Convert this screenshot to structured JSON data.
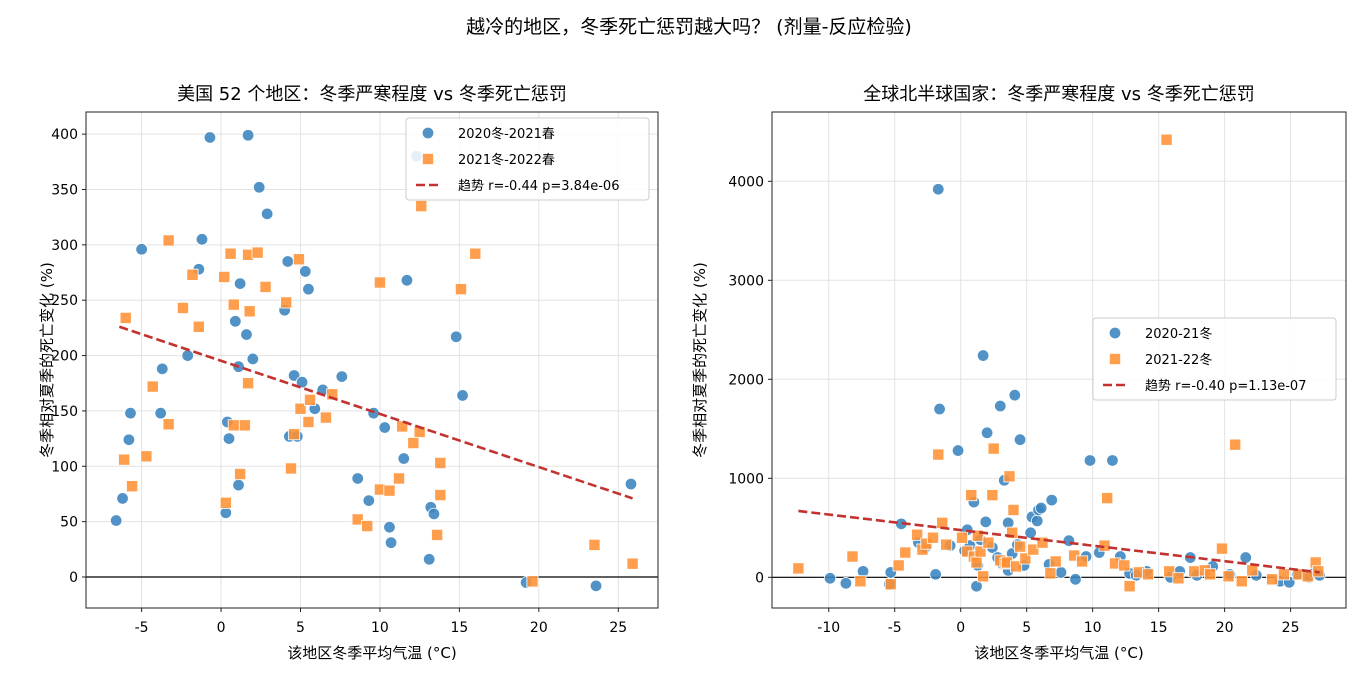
{
  "suptitle": "越冷的地区，冬季死亡惩罚越大吗？ (剂量-反应检验)",
  "chart_data": [
    {
      "type": "scatter",
      "title": "美国 52 个地区：冬季严寒程度 vs 冬季死亡惩罚",
      "xlabel": "该地区冬季平均气温 (°C)",
      "ylabel": "冬季相对夏季的死亡变化 (%)",
      "xlim": [
        -8.5,
        27.5
      ],
      "ylim": [
        -28,
        420
      ],
      "xticks": [
        -5,
        0,
        5,
        10,
        15,
        20,
        25
      ],
      "yticks": [
        0,
        50,
        100,
        150,
        200,
        250,
        300,
        350,
        400
      ],
      "grid": true,
      "zero_line": 0,
      "legend_position": "top-right",
      "series": [
        {
          "name": "2020冬-2021春",
          "marker": "circle",
          "color": "#3a84bf",
          "points": [
            [
              -6.6,
              51
            ],
            [
              -6.2,
              71
            ],
            [
              -5.8,
              124
            ],
            [
              -5.7,
              148
            ],
            [
              -5.0,
              296
            ],
            [
              -3.8,
              148
            ],
            [
              -3.7,
              188
            ],
            [
              -2.1,
              200
            ],
            [
              -1.4,
              278
            ],
            [
              -1.2,
              305
            ],
            [
              -0.7,
              397
            ],
            [
              0.3,
              58
            ],
            [
              0.4,
              140
            ],
            [
              0.5,
              125
            ],
            [
              0.9,
              231
            ],
            [
              1.1,
              83
            ],
            [
              1.1,
              190
            ],
            [
              1.2,
              265
            ],
            [
              1.6,
              219
            ],
            [
              1.7,
              399
            ],
            [
              2.0,
              197
            ],
            [
              2.4,
              352
            ],
            [
              2.9,
              328
            ],
            [
              4.0,
              241
            ],
            [
              4.2,
              285
            ],
            [
              4.3,
              127
            ],
            [
              4.6,
              182
            ],
            [
              4.8,
              127
            ],
            [
              5.1,
              176
            ],
            [
              5.3,
              276
            ],
            [
              5.5,
              260
            ],
            [
              5.9,
              152
            ],
            [
              6.4,
              169
            ],
            [
              7.6,
              181
            ],
            [
              8.6,
              89
            ],
            [
              9.3,
              69
            ],
            [
              9.6,
              148
            ],
            [
              10.3,
              135
            ],
            [
              10.6,
              45
            ],
            [
              10.7,
              31
            ],
            [
              11.5,
              107
            ],
            [
              11.7,
              268
            ],
            [
              12.3,
              380
            ],
            [
              13.1,
              16
            ],
            [
              13.2,
              63
            ],
            [
              13.4,
              57
            ],
            [
              14.8,
              217
            ],
            [
              15.2,
              164
            ],
            [
              19.2,
              -5
            ],
            [
              23.6,
              -8
            ],
            [
              25.8,
              84
            ]
          ]
        },
        {
          "name": "2021冬-2022春",
          "marker": "square",
          "color": "#ff9133",
          "points": [
            [
              -6.0,
              234
            ],
            [
              -6.1,
              106
            ],
            [
              -5.6,
              82
            ],
            [
              -4.7,
              109
            ],
            [
              -4.3,
              172
            ],
            [
              -3.3,
              304
            ],
            [
              -3.3,
              138
            ],
            [
              -2.4,
              243
            ],
            [
              -1.8,
              273
            ],
            [
              -1.4,
              226
            ],
            [
              0.2,
              271
            ],
            [
              0.3,
              67
            ],
            [
              0.6,
              292
            ],
            [
              0.8,
              137
            ],
            [
              0.8,
              246
            ],
            [
              1.2,
              93
            ],
            [
              1.5,
              137
            ],
            [
              1.7,
              291
            ],
            [
              1.7,
              175
            ],
            [
              1.8,
              240
            ],
            [
              2.3,
              293
            ],
            [
              2.8,
              262
            ],
            [
              4.1,
              248
            ],
            [
              4.4,
              98
            ],
            [
              4.6,
              129
            ],
            [
              4.9,
              287
            ],
            [
              5.0,
              152
            ],
            [
              5.5,
              140
            ],
            [
              5.6,
              160
            ],
            [
              6.6,
              144
            ],
            [
              7.0,
              165
            ],
            [
              8.6,
              52
            ],
            [
              9.2,
              46
            ],
            [
              10.0,
              266
            ],
            [
              10.0,
              79
            ],
            [
              10.6,
              78
            ],
            [
              11.2,
              89
            ],
            [
              11.4,
              136
            ],
            [
              12.1,
              121
            ],
            [
              12.5,
              131
            ],
            [
              12.6,
              335
            ],
            [
              13.6,
              38
            ],
            [
              13.8,
              74
            ],
            [
              13.8,
              103
            ],
            [
              15.1,
              260
            ],
            [
              16.0,
              292
            ],
            [
              19.6,
              -4
            ],
            [
              23.5,
              29
            ],
            [
              25.9,
              12
            ]
          ]
        }
      ],
      "trend": {
        "name": "趋势 r=-0.44 p=3.84e-06",
        "color": "#c23330",
        "x": [
          -6.4,
          25.9
        ],
        "y": [
          226,
          71
        ]
      }
    },
    {
      "type": "scatter",
      "title": "全球北半球国家：冬季严寒程度 vs 冬季死亡惩罚",
      "xlabel": "该地区冬季平均气温 (°C)",
      "ylabel": "冬季相对夏季的死亡变化 (%)",
      "xlim": [
        -14.3,
        29.2
      ],
      "ylim": [
        -310,
        4700
      ],
      "xticks": [
        -10,
        -5,
        0,
        5,
        10,
        15,
        20,
        25
      ],
      "yticks": [
        0,
        1000,
        2000,
        3000,
        4000
      ],
      "grid": true,
      "zero_line": 0,
      "legend_position": "center-right",
      "series": [
        {
          "name": "2020-21冬",
          "marker": "circle",
          "color": "#3a84bf",
          "points": [
            [
              -9.9,
              -10
            ],
            [
              -8.7,
              -60
            ],
            [
              -7.4,
              60
            ],
            [
              -5.4,
              -70
            ],
            [
              -5.3,
              50
            ],
            [
              -4.5,
              540
            ],
            [
              -3.2,
              350
            ],
            [
              -2.7,
              300
            ],
            [
              -1.9,
              30
            ],
            [
              -1.7,
              3920
            ],
            [
              -1.6,
              1700
            ],
            [
              -0.8,
              320
            ],
            [
              -0.2,
              1280
            ],
            [
              0.3,
              270
            ],
            [
              0.5,
              480
            ],
            [
              0.7,
              320
            ],
            [
              1.0,
              760
            ],
            [
              1.2,
              -90
            ],
            [
              1.3,
              120
            ],
            [
              1.5,
              380
            ],
            [
              1.7,
              2240
            ],
            [
              1.9,
              560
            ],
            [
              2.0,
              1460
            ],
            [
              2.4,
              300
            ],
            [
              2.8,
              200
            ],
            [
              3.0,
              1730
            ],
            [
              3.2,
              130
            ],
            [
              3.3,
              980
            ],
            [
              3.6,
              70
            ],
            [
              3.6,
              550
            ],
            [
              3.9,
              240
            ],
            [
              4.1,
              1840
            ],
            [
              4.3,
              330
            ],
            [
              4.5,
              1390
            ],
            [
              4.8,
              120
            ],
            [
              5.3,
              450
            ],
            [
              5.4,
              610
            ],
            [
              5.8,
              570
            ],
            [
              5.9,
              680
            ],
            [
              6.1,
              700
            ],
            [
              6.7,
              130
            ],
            [
              6.9,
              780
            ],
            [
              7.6,
              50
            ],
            [
              8.2,
              370
            ],
            [
              8.7,
              -20
            ],
            [
              9.5,
              210
            ],
            [
              9.8,
              1180
            ],
            [
              10.5,
              250
            ],
            [
              11.5,
              1180
            ],
            [
              12.1,
              210
            ],
            [
              12.8,
              40
            ],
            [
              13.3,
              20
            ],
            [
              14.1,
              60
            ],
            [
              15.9,
              0
            ],
            [
              16.6,
              60
            ],
            [
              17.4,
              200
            ],
            [
              17.9,
              20
            ],
            [
              19.1,
              110
            ],
            [
              20.4,
              30
            ],
            [
              21.6,
              200
            ],
            [
              22.4,
              20
            ],
            [
              24.2,
              -40
            ],
            [
              24.9,
              -50
            ],
            [
              25.5,
              30
            ],
            [
              26.4,
              0
            ],
            [
              26.8,
              40
            ],
            [
              27.2,
              20
            ]
          ]
        },
        {
          "name": "2021-22冬",
          "marker": "square",
          "color": "#ff9133",
          "points": [
            [
              -12.3,
              90
            ],
            [
              -8.2,
              210
            ],
            [
              -7.6,
              -40
            ],
            [
              -5.3,
              -70
            ],
            [
              -4.7,
              120
            ],
            [
              -4.2,
              250
            ],
            [
              -3.3,
              430
            ],
            [
              -2.9,
              280
            ],
            [
              -2.6,
              340
            ],
            [
              -2.1,
              400
            ],
            [
              -1.7,
              1240
            ],
            [
              -1.4,
              550
            ],
            [
              -1.1,
              330
            ],
            [
              0.1,
              400
            ],
            [
              0.5,
              260
            ],
            [
              0.8,
              830
            ],
            [
              1.0,
              210
            ],
            [
              1.2,
              150
            ],
            [
              1.3,
              420
            ],
            [
              1.5,
              260
            ],
            [
              1.7,
              10
            ],
            [
              2.1,
              350
            ],
            [
              2.4,
              830
            ],
            [
              2.5,
              1300
            ],
            [
              3.0,
              170
            ],
            [
              3.4,
              140
            ],
            [
              3.5,
              150
            ],
            [
              3.7,
              1020
            ],
            [
              3.9,
              450
            ],
            [
              4.0,
              680
            ],
            [
              4.2,
              110
            ],
            [
              4.5,
              310
            ],
            [
              4.9,
              190
            ],
            [
              5.5,
              280
            ],
            [
              6.2,
              350
            ],
            [
              6.8,
              40
            ],
            [
              7.2,
              160
            ],
            [
              8.6,
              220
            ],
            [
              9.2,
              160
            ],
            [
              10.9,
              320
            ],
            [
              11.1,
              800
            ],
            [
              11.7,
              140
            ],
            [
              12.4,
              120
            ],
            [
              12.8,
              -90
            ],
            [
              13.5,
              50
            ],
            [
              14.2,
              30
            ],
            [
              15.6,
              4420
            ],
            [
              15.8,
              60
            ],
            [
              16.5,
              -10
            ],
            [
              17.7,
              60
            ],
            [
              18.5,
              70
            ],
            [
              18.9,
              30
            ],
            [
              19.8,
              290
            ],
            [
              20.3,
              10
            ],
            [
              20.8,
              1340
            ],
            [
              21.3,
              -40
            ],
            [
              22.1,
              70
            ],
            [
              23.6,
              -20
            ],
            [
              24.5,
              30
            ],
            [
              25.6,
              30
            ],
            [
              26.3,
              10
            ],
            [
              26.9,
              150
            ],
            [
              27.1,
              60
            ]
          ]
        }
      ],
      "trend": {
        "name": "趋势 r=-0.40 p=1.13e-07",
        "color": "#c23330",
        "x": [
          -12.3,
          27.2
        ],
        "y": [
          670,
          50
        ]
      }
    }
  ]
}
